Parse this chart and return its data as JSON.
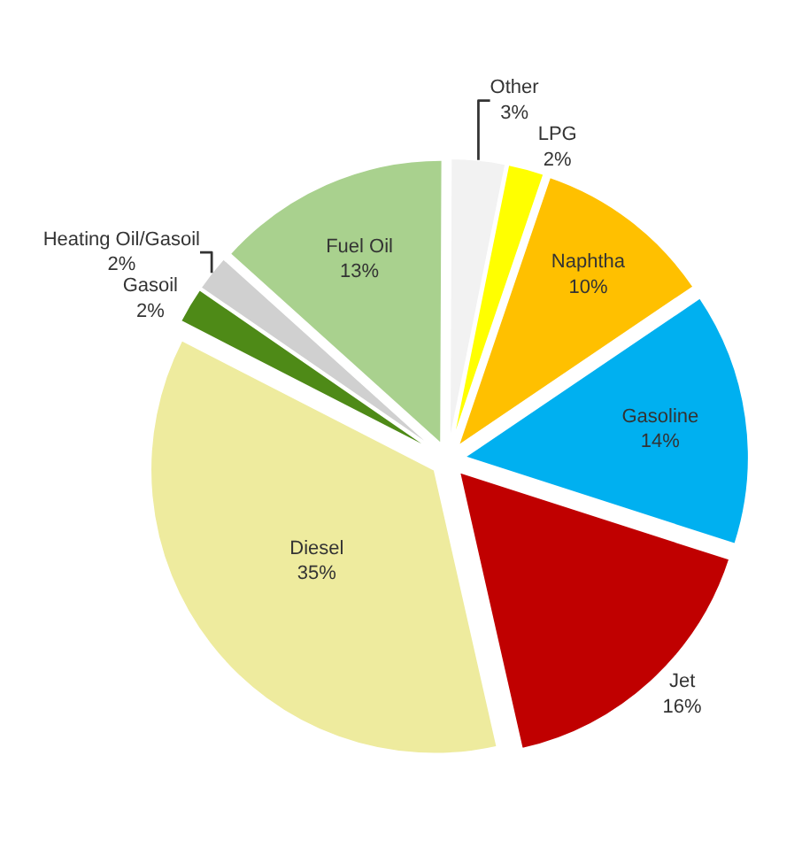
{
  "chart_data": {
    "type": "pie",
    "categories": [
      "Fuel Oil",
      "Other",
      "LPG",
      "Naphtha",
      "Gasoline",
      "Jet",
      "Diesel",
      "Gasoil",
      "Heating Oil/Gasoil"
    ],
    "values": [
      13,
      3,
      2,
      10,
      14,
      16,
      35,
      2,
      2
    ],
    "value_labels": [
      "13%",
      "3%",
      "2%",
      "10%",
      "14%",
      "16%",
      "35%",
      "2%",
      "2%"
    ],
    "colors": [
      "#a9d18e",
      "#f2f2f2",
      "#ffff00",
      "#ffc000",
      "#00b0f0",
      "#c00000",
      "#eeeb9e",
      "#4e8a17",
      "#d0d0d0"
    ],
    "legend": false
  }
}
